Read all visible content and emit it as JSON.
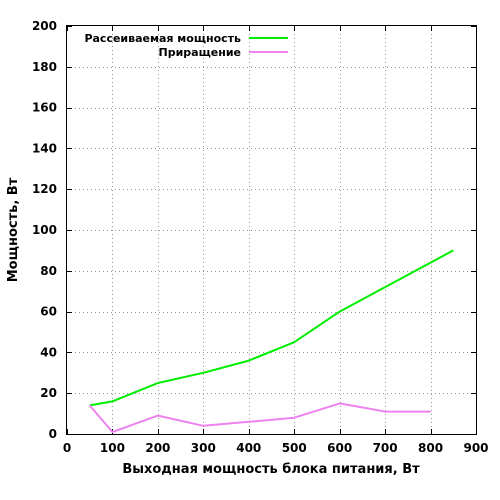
{
  "chart_data": {
    "type": "line",
    "xlabel": "Выходная мощность блока питания, Вт",
    "ylabel": "Мощность, Вт",
    "xlim": [
      0,
      900
    ],
    "ylim": [
      0,
      200
    ],
    "x_ticks": [
      0,
      100,
      200,
      300,
      400,
      500,
      600,
      700,
      800,
      900
    ],
    "y_ticks": [
      0,
      20,
      40,
      60,
      80,
      100,
      120,
      140,
      160,
      180,
      200
    ],
    "grid": true,
    "legend_position": "top-left",
    "series": [
      {
        "name": "Рассеиваемая мощность",
        "color": "#00ee00",
        "x": [
          50,
          100,
          200,
          300,
          400,
          500,
          600,
          700,
          800,
          850
        ],
        "y": [
          14,
          16,
          25,
          30,
          36,
          45,
          60,
          72,
          84,
          90
        ]
      },
      {
        "name": "Приращение",
        "color": "#ee82ee",
        "x": [
          50,
          100,
          200,
          300,
          400,
          500,
          600,
          700,
          800
        ],
        "y": [
          14,
          1,
          9,
          4,
          6,
          8,
          15,
          11,
          11
        ]
      }
    ]
  }
}
